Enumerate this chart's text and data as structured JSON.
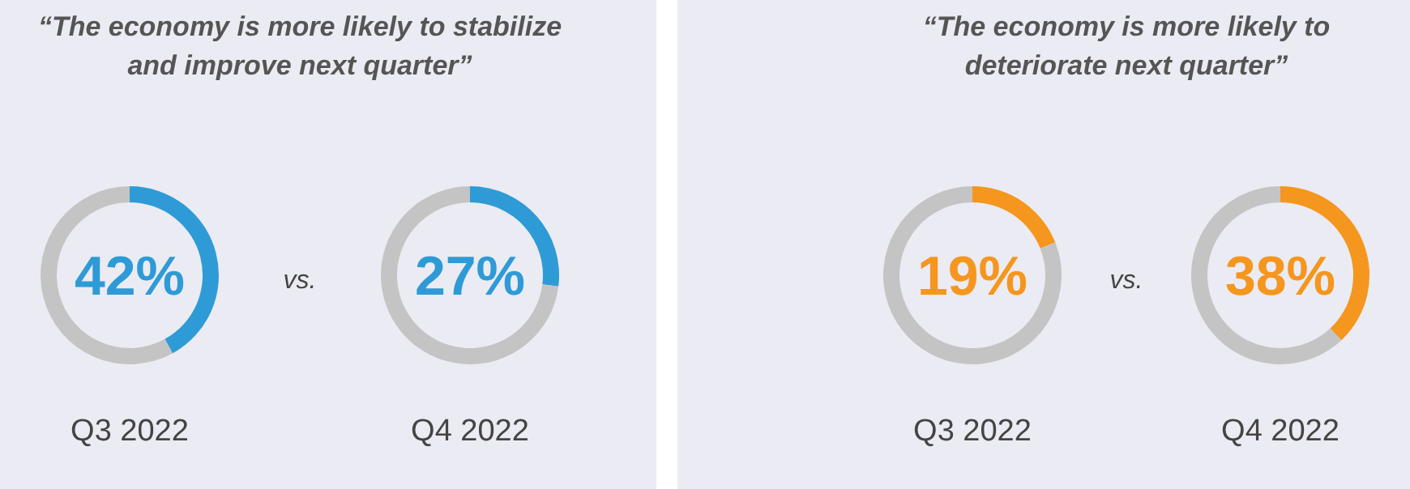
{
  "chart_data": [
    {
      "type": "donut",
      "title": "“The economy is more likely to stabilize and improve next quarter”",
      "xlabel": "Q3 2022",
      "annotations": [
        "42%",
        "vs."
      ],
      "categories": [
        null,
        null
      ],
      "values": [
        42,
        58
      ],
      "colors": [
        "#2e9bd6",
        "#c4c4c4"
      ]
    },
    {
      "type": "donut",
      "xlabel": "Q4 2022",
      "annotations": [
        "27%"
      ],
      "categories": [
        null,
        null
      ],
      "values": [
        27,
        73
      ],
      "colors": [
        "#2e9bd6",
        "#c4c4c4"
      ]
    },
    {
      "type": "donut",
      "title": "“The economy is more likely to deteriorate next quarter”",
      "xlabel": "Q3 2022",
      "annotations": [
        "19%",
        "vs."
      ],
      "categories": [
        null,
        null
      ],
      "values": [
        19,
        81
      ],
      "colors": [
        "#f5961e",
        "#c4c4c4"
      ]
    },
    {
      "type": "donut",
      "xlabel": "Q4 2022",
      "annotations": [
        "38%"
      ],
      "categories": [
        null,
        null
      ],
      "values": [
        38,
        62
      ],
      "colors": [
        "#f5961e",
        "#c4c4c4"
      ]
    }
  ]
}
